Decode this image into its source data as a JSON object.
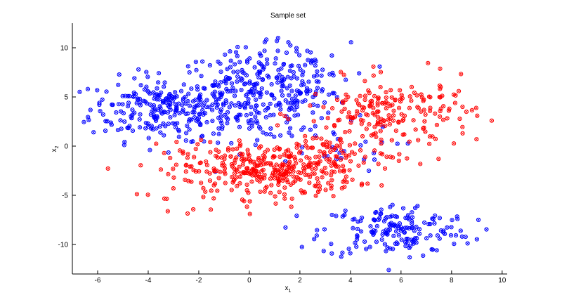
{
  "chart_data": {
    "type": "scatter",
    "title": "Sample set",
    "xlabel": {
      "base": "x",
      "sub": "1"
    },
    "ylabel": {
      "base": "x",
      "sub": "2"
    },
    "xlim": [
      -7,
      10.2
    ],
    "ylim": [
      -13,
      12.5
    ],
    "xticks": [
      -6,
      -4,
      -2,
      0,
      2,
      4,
      6,
      8,
      10
    ],
    "yticks": [
      -10,
      -5,
      0,
      5,
      10
    ],
    "grid": false,
    "marker": "circle-with-cross",
    "series": [
      {
        "color": "#0000ff",
        "clusters": [
          {
            "cx": -3.5,
            "cy": 3.8,
            "sx": 1.4,
            "sy": 1.6,
            "n": 230
          },
          {
            "cx": 0.2,
            "cy": 5.2,
            "sx": 1.5,
            "sy": 2.3,
            "n": 280
          },
          {
            "cx": 2.0,
            "cy": 6.5,
            "sx": 1.0,
            "sy": 2.0,
            "n": 70
          },
          {
            "cx": 5.8,
            "cy": -8.6,
            "sx": 1.5,
            "sy": 1.4,
            "n": 170
          },
          {
            "cx": 3.2,
            "cy": -0.2,
            "sx": 1.3,
            "sy": 1.2,
            "n": 25
          }
        ]
      },
      {
        "color": "#ff0000",
        "clusters": [
          {
            "cx": 0.8,
            "cy": -2.5,
            "sx": 1.7,
            "sy": 1.4,
            "n": 320
          },
          {
            "cx": 5.6,
            "cy": 3.2,
            "sx": 1.7,
            "sy": 1.8,
            "n": 210
          },
          {
            "cx": 3.2,
            "cy": -1.2,
            "sx": 1.2,
            "sy": 1.5,
            "n": 60
          },
          {
            "cx": -2.5,
            "cy": -3.5,
            "sx": 0.8,
            "sy": 1.5,
            "n": 25
          }
        ]
      }
    ]
  }
}
